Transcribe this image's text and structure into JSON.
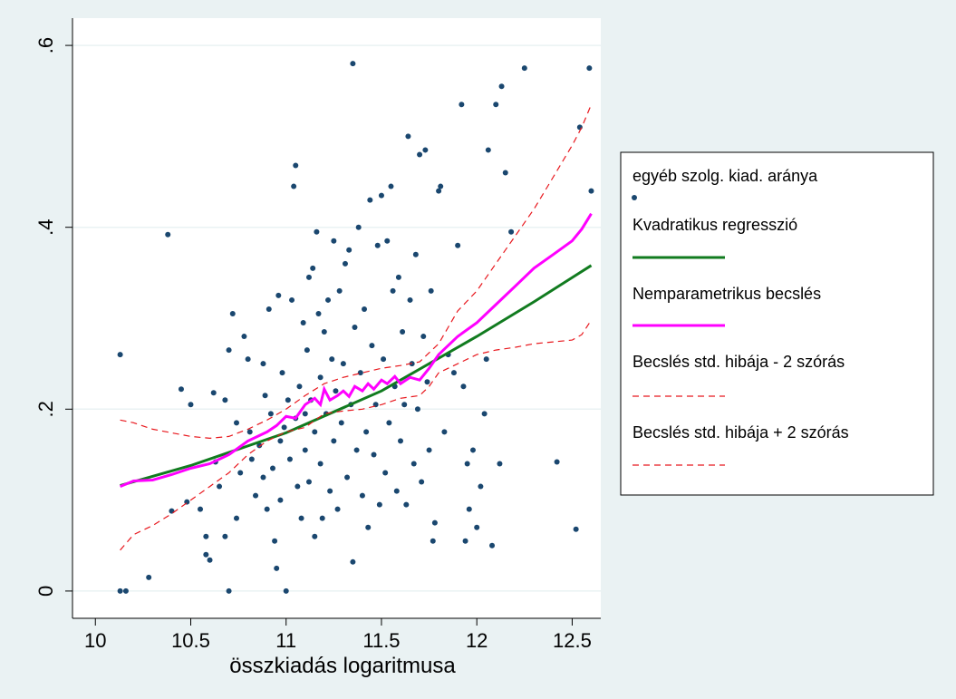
{
  "chart_data": {
    "type": "scatter",
    "xlabel": "összkiadás logaritmusa",
    "ylabel": "",
    "xlim": [
      9.88,
      12.65
    ],
    "ylim": [
      -0.03,
      0.63
    ],
    "xticks": [
      10,
      10.5,
      11,
      11.5,
      12,
      12.5
    ],
    "xtick_labels": [
      "10",
      "10.5",
      "11",
      "11.5",
      "12",
      "12.5"
    ],
    "yticks": [
      0,
      0.2,
      0.4,
      0.6
    ],
    "ytick_labels": [
      "0",
      ".2",
      ".4",
      ".6"
    ],
    "grid": true,
    "legend_position": "right",
    "colors": {
      "background": "#eaf2f3",
      "plot": "#ffffff",
      "grid": "#eaf2f3",
      "points": "#1a476f",
      "quadratic": "#117b1f",
      "nonparametric": "#ff00ff",
      "band": "#e8171d"
    },
    "series": [
      {
        "name": "egyéb szolg. kiad. aránya",
        "kind": "scatter",
        "points": [
          [
            10.13,
            0.26
          ],
          [
            10.13,
            0.0
          ],
          [
            10.16,
            0.0
          ],
          [
            10.28,
            0.015
          ],
          [
            10.38,
            0.392
          ],
          [
            10.4,
            0.088
          ],
          [
            10.45,
            0.222
          ],
          [
            10.48,
            0.098
          ],
          [
            10.5,
            0.205
          ],
          [
            10.55,
            0.09
          ],
          [
            10.58,
            0.06
          ],
          [
            10.58,
            0.04
          ],
          [
            10.6,
            0.034
          ],
          [
            10.62,
            0.218
          ],
          [
            10.63,
            0.142
          ],
          [
            10.65,
            0.115
          ],
          [
            10.68,
            0.06
          ],
          [
            10.68,
            0.21
          ],
          [
            10.7,
            0.265
          ],
          [
            10.7,
            0.0
          ],
          [
            10.72,
            0.305
          ],
          [
            10.74,
            0.185
          ],
          [
            10.74,
            0.08
          ],
          [
            10.76,
            0.13
          ],
          [
            10.78,
            0.28
          ],
          [
            10.8,
            0.255
          ],
          [
            10.81,
            0.175
          ],
          [
            10.82,
            0.145
          ],
          [
            10.84,
            0.105
          ],
          [
            10.86,
            0.16
          ],
          [
            10.88,
            0.25
          ],
          [
            10.88,
            0.125
          ],
          [
            10.89,
            0.215
          ],
          [
            10.9,
            0.09
          ],
          [
            10.91,
            0.31
          ],
          [
            10.92,
            0.195
          ],
          [
            10.93,
            0.135
          ],
          [
            10.94,
            0.055
          ],
          [
            10.95,
            0.025
          ],
          [
            10.96,
            0.325
          ],
          [
            10.97,
            0.165
          ],
          [
            10.97,
            0.1
          ],
          [
            10.98,
            0.24
          ],
          [
            10.99,
            0.18
          ],
          [
            11.0,
            0.0
          ],
          [
            11.01,
            0.21
          ],
          [
            11.02,
            0.145
          ],
          [
            11.03,
            0.32
          ],
          [
            11.04,
            0.445
          ],
          [
            11.05,
            0.468
          ],
          [
            11.05,
            0.19
          ],
          [
            11.06,
            0.115
          ],
          [
            11.07,
            0.225
          ],
          [
            11.08,
            0.08
          ],
          [
            11.09,
            0.295
          ],
          [
            11.1,
            0.155
          ],
          [
            11.1,
            0.195
          ],
          [
            11.11,
            0.265
          ],
          [
            11.12,
            0.345
          ],
          [
            11.12,
            0.12
          ],
          [
            11.13,
            0.21
          ],
          [
            11.14,
            0.355
          ],
          [
            11.15,
            0.06
          ],
          [
            11.15,
            0.175
          ],
          [
            11.16,
            0.395
          ],
          [
            11.17,
            0.305
          ],
          [
            11.18,
            0.235
          ],
          [
            11.18,
            0.14
          ],
          [
            11.19,
            0.08
          ],
          [
            11.2,
            0.285
          ],
          [
            11.21,
            0.195
          ],
          [
            11.22,
            0.32
          ],
          [
            11.23,
            0.11
          ],
          [
            11.24,
            0.255
          ],
          [
            11.25,
            0.165
          ],
          [
            11.25,
            0.385
          ],
          [
            11.26,
            0.22
          ],
          [
            11.27,
            0.09
          ],
          [
            11.28,
            0.33
          ],
          [
            11.29,
            0.185
          ],
          [
            11.3,
            0.25
          ],
          [
            11.31,
            0.36
          ],
          [
            11.32,
            0.125
          ],
          [
            11.33,
            0.375
          ],
          [
            11.34,
            0.205
          ],
          [
            11.35,
            0.032
          ],
          [
            11.35,
            0.58
          ],
          [
            11.36,
            0.29
          ],
          [
            11.37,
            0.155
          ],
          [
            11.38,
            0.4
          ],
          [
            11.39,
            0.24
          ],
          [
            11.4,
            0.105
          ],
          [
            11.41,
            0.31
          ],
          [
            11.42,
            0.175
          ],
          [
            11.43,
            0.07
          ],
          [
            11.44,
            0.43
          ],
          [
            11.45,
            0.27
          ],
          [
            11.46,
            0.15
          ],
          [
            11.47,
            0.205
          ],
          [
            11.48,
            0.38
          ],
          [
            11.49,
            0.095
          ],
          [
            11.5,
            0.435
          ],
          [
            11.51,
            0.255
          ],
          [
            11.52,
            0.13
          ],
          [
            11.53,
            0.385
          ],
          [
            11.54,
            0.185
          ],
          [
            11.55,
            0.445
          ],
          [
            11.56,
            0.33
          ],
          [
            11.57,
            0.225
          ],
          [
            11.58,
            0.11
          ],
          [
            11.59,
            0.345
          ],
          [
            11.6,
            0.165
          ],
          [
            11.61,
            0.285
          ],
          [
            11.62,
            0.205
          ],
          [
            11.63,
            0.095
          ],
          [
            11.64,
            0.5
          ],
          [
            11.65,
            0.32
          ],
          [
            11.66,
            0.25
          ],
          [
            11.67,
            0.14
          ],
          [
            11.68,
            0.37
          ],
          [
            11.69,
            0.2
          ],
          [
            11.7,
            0.48
          ],
          [
            11.71,
            0.12
          ],
          [
            11.72,
            0.28
          ],
          [
            11.73,
            0.485
          ],
          [
            11.74,
            0.23
          ],
          [
            11.75,
            0.155
          ],
          [
            11.76,
            0.33
          ],
          [
            11.77,
            0.055
          ],
          [
            11.78,
            0.075
          ],
          [
            11.8,
            0.44
          ],
          [
            11.81,
            0.445
          ],
          [
            11.83,
            0.175
          ],
          [
            11.85,
            0.26
          ],
          [
            11.88,
            0.24
          ],
          [
            11.9,
            0.38
          ],
          [
            11.92,
            0.535
          ],
          [
            11.93,
            0.225
          ],
          [
            11.94,
            0.055
          ],
          [
            11.95,
            0.14
          ],
          [
            11.96,
            0.09
          ],
          [
            11.98,
            0.155
          ],
          [
            12.0,
            0.07
          ],
          [
            12.02,
            0.115
          ],
          [
            12.04,
            0.195
          ],
          [
            12.05,
            0.255
          ],
          [
            12.06,
            0.485
          ],
          [
            12.08,
            0.05
          ],
          [
            12.1,
            0.535
          ],
          [
            12.12,
            0.14
          ],
          [
            12.13,
            0.555
          ],
          [
            12.15,
            0.46
          ],
          [
            12.18,
            0.395
          ],
          [
            12.25,
            0.575
          ],
          [
            12.42,
            0.142
          ],
          [
            12.52,
            0.068
          ],
          [
            12.54,
            0.51
          ],
          [
            12.59,
            0.575
          ],
          [
            12.6,
            0.44
          ]
        ]
      },
      {
        "name": "Kvadratikus regresszió",
        "kind": "line",
        "points": [
          [
            10.13,
            0.116
          ],
          [
            10.5,
            0.138
          ],
          [
            11.0,
            0.174
          ],
          [
            11.5,
            0.22
          ],
          [
            12.0,
            0.28
          ],
          [
            12.3,
            0.318
          ],
          [
            12.6,
            0.358
          ]
        ]
      },
      {
        "name": "Nemparametrikus becslés",
        "kind": "line",
        "points": [
          [
            10.13,
            0.115
          ],
          [
            10.2,
            0.121
          ],
          [
            10.3,
            0.122
          ],
          [
            10.4,
            0.128
          ],
          [
            10.5,
            0.135
          ],
          [
            10.6,
            0.14
          ],
          [
            10.7,
            0.15
          ],
          [
            10.8,
            0.165
          ],
          [
            10.9,
            0.175
          ],
          [
            10.95,
            0.182
          ],
          [
            11.0,
            0.192
          ],
          [
            11.05,
            0.19
          ],
          [
            11.1,
            0.205
          ],
          [
            11.15,
            0.212
          ],
          [
            11.18,
            0.205
          ],
          [
            11.2,
            0.222
          ],
          [
            11.23,
            0.21
          ],
          [
            11.27,
            0.215
          ],
          [
            11.3,
            0.22
          ],
          [
            11.33,
            0.214
          ],
          [
            11.36,
            0.225
          ],
          [
            11.4,
            0.22
          ],
          [
            11.43,
            0.228
          ],
          [
            11.46,
            0.222
          ],
          [
            11.5,
            0.232
          ],
          [
            11.53,
            0.228
          ],
          [
            11.57,
            0.236
          ],
          [
            11.6,
            0.228
          ],
          [
            11.65,
            0.235
          ],
          [
            11.7,
            0.232
          ],
          [
            11.75,
            0.245
          ],
          [
            11.8,
            0.26
          ],
          [
            11.85,
            0.27
          ],
          [
            11.9,
            0.28
          ],
          [
            12.0,
            0.295
          ],
          [
            12.1,
            0.315
          ],
          [
            12.2,
            0.335
          ],
          [
            12.3,
            0.355
          ],
          [
            12.4,
            0.37
          ],
          [
            12.5,
            0.385
          ],
          [
            12.55,
            0.398
          ],
          [
            12.6,
            0.415
          ]
        ]
      },
      {
        "name": "Becslés std. hibája - 2 szórás",
        "kind": "dashed",
        "points": [
          [
            10.13,
            0.045
          ],
          [
            10.2,
            0.062
          ],
          [
            10.3,
            0.072
          ],
          [
            10.4,
            0.085
          ],
          [
            10.5,
            0.1
          ],
          [
            10.6,
            0.115
          ],
          [
            10.7,
            0.13
          ],
          [
            10.8,
            0.15
          ],
          [
            10.9,
            0.165
          ],
          [
            11.0,
            0.175
          ],
          [
            11.1,
            0.18
          ],
          [
            11.2,
            0.195
          ],
          [
            11.3,
            0.198
          ],
          [
            11.4,
            0.2
          ],
          [
            11.5,
            0.205
          ],
          [
            11.6,
            0.212
          ],
          [
            11.7,
            0.215
          ],
          [
            11.75,
            0.225
          ],
          [
            11.8,
            0.24
          ],
          [
            11.85,
            0.245
          ],
          [
            11.9,
            0.25
          ],
          [
            12.0,
            0.26
          ],
          [
            12.1,
            0.265
          ],
          [
            12.2,
            0.268
          ],
          [
            12.3,
            0.272
          ],
          [
            12.4,
            0.274
          ],
          [
            12.5,
            0.276
          ],
          [
            12.55,
            0.282
          ],
          [
            12.6,
            0.298
          ]
        ]
      },
      {
        "name": "Becslés std. hibája + 2 szórás",
        "kind": "dashed",
        "points": [
          [
            10.13,
            0.188
          ],
          [
            10.2,
            0.185
          ],
          [
            10.3,
            0.178
          ],
          [
            10.4,
            0.174
          ],
          [
            10.5,
            0.17
          ],
          [
            10.6,
            0.168
          ],
          [
            10.7,
            0.17
          ],
          [
            10.8,
            0.178
          ],
          [
            10.9,
            0.188
          ],
          [
            11.0,
            0.2
          ],
          [
            11.1,
            0.215
          ],
          [
            11.2,
            0.228
          ],
          [
            11.3,
            0.235
          ],
          [
            11.4,
            0.24
          ],
          [
            11.5,
            0.245
          ],
          [
            11.6,
            0.248
          ],
          [
            11.7,
            0.252
          ],
          [
            11.75,
            0.262
          ],
          [
            11.8,
            0.272
          ],
          [
            11.85,
            0.29
          ],
          [
            11.9,
            0.308
          ],
          [
            12.0,
            0.33
          ],
          [
            12.1,
            0.36
          ],
          [
            12.2,
            0.39
          ],
          [
            12.3,
            0.42
          ],
          [
            12.4,
            0.455
          ],
          [
            12.5,
            0.49
          ],
          [
            12.55,
            0.51
          ],
          [
            12.6,
            0.535
          ]
        ]
      }
    ]
  }
}
